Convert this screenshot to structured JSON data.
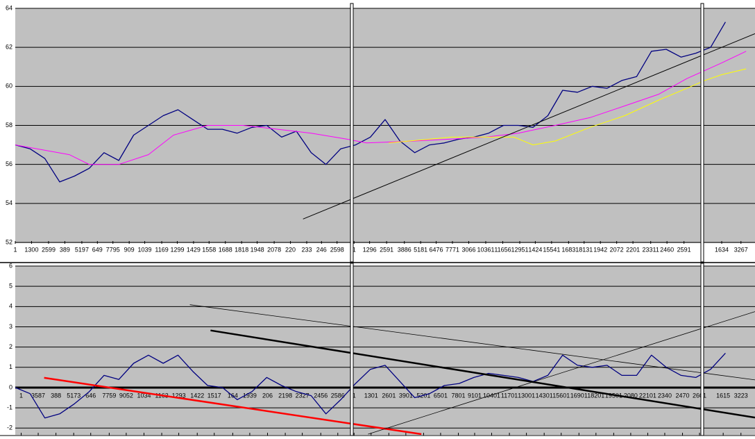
{
  "chart_data": [
    {
      "type": "line",
      "ylim": [
        52,
        64
      ],
      "yticks": [
        52,
        54,
        56,
        58,
        60,
        62,
        64
      ],
      "xlim": [
        0,
        100
      ],
      "grid": true,
      "xticks": [
        {
          "value": 0,
          "label": "1"
        },
        {
          "value": 2.2,
          "label": "1300"
        },
        {
          "value": 4.5,
          "label": "2599"
        },
        {
          "value": 6.7,
          "label": "389"
        },
        {
          "value": 9.0,
          "label": "5197"
        },
        {
          "value": 11.1,
          "label": "649"
        },
        {
          "value": 13.2,
          "label": "7795"
        },
        {
          "value": 15.4,
          "label": "909"
        },
        {
          "value": 17.5,
          "label": "1039"
        },
        {
          "value": 19.8,
          "label": "1169"
        },
        {
          "value": 21.9,
          "label": "1299"
        },
        {
          "value": 24.1,
          "label": "1429"
        },
        {
          "value": 26.2,
          "label": "1558"
        },
        {
          "value": 28.4,
          "label": "1688"
        },
        {
          "value": 30.6,
          "label": "1818"
        },
        {
          "value": 32.7,
          "label": "1948"
        },
        {
          "value": 35.0,
          "label": "2078"
        },
        {
          "value": 37.2,
          "label": "220"
        },
        {
          "value": 39.4,
          "label": "233"
        },
        {
          "value": 41.4,
          "label": "246"
        },
        {
          "value": 43.5,
          "label": "2598"
        },
        {
          "value": 45.8,
          "label": "1"
        },
        {
          "value": 47.9,
          "label": "1296"
        },
        {
          "value": 50.2,
          "label": "2591"
        },
        {
          "value": 52.6,
          "label": "3886"
        },
        {
          "value": 54.8,
          "label": "5181"
        },
        {
          "value": 56.9,
          "label": "6476"
        },
        {
          "value": 59.1,
          "label": "7771"
        },
        {
          "value": 61.3,
          "label": "3066"
        },
        {
          "value": 63.6,
          "label": "10361"
        },
        {
          "value": 65.9,
          "label": "11656"
        },
        {
          "value": 68.2,
          "label": "12951"
        },
        {
          "value": 70.3,
          "label": "1424"
        },
        {
          "value": 72.5,
          "label": "15541"
        },
        {
          "value": 74.8,
          "label": "1683"
        },
        {
          "value": 76.9,
          "label": "18131"
        },
        {
          "value": 79.1,
          "label": "1942"
        },
        {
          "value": 81.3,
          "label": "2072"
        },
        {
          "value": 83.5,
          "label": "2201"
        },
        {
          "value": 85.9,
          "label": "23311"
        },
        {
          "value": 88.1,
          "label": "2460"
        },
        {
          "value": 90.4,
          "label": "2591"
        },
        {
          "value": 95.5,
          "label": "1634"
        },
        {
          "value": 98.1,
          "label": "3267"
        }
      ],
      "series": [
        {
          "color": "#000080",
          "line_width": 1.3,
          "x": [
            0,
            2,
            4,
            6,
            8,
            10,
            12,
            14,
            16,
            18,
            20,
            22,
            24,
            26,
            28,
            30,
            32,
            34,
            36,
            38,
            40,
            42,
            44,
            46,
            48,
            50,
            52,
            54,
            56,
            58,
            60,
            62,
            64,
            66,
            68,
            70,
            72,
            74,
            76,
            78,
            80,
            82,
            84,
            86,
            88,
            90,
            92,
            94,
            96
          ],
          "values": [
            57.0,
            56.8,
            56.3,
            55.1,
            55.4,
            55.8,
            56.6,
            56.2,
            57.5,
            58.0,
            58.5,
            58.8,
            58.3,
            57.8,
            57.8,
            57.6,
            57.9,
            58.0,
            57.4,
            57.7,
            56.6,
            56.0,
            56.8,
            57.0,
            57.4,
            58.3,
            57.2,
            56.6,
            57.0,
            57.1,
            57.3,
            57.4,
            57.6,
            58.0,
            58.0,
            57.9,
            58.5,
            59.8,
            59.7,
            60.0,
            59.9,
            60.3,
            60.5,
            61.8,
            61.9,
            61.5,
            61.7,
            62.0,
            63.3
          ]
        },
        {
          "color": "#ff00ff",
          "line_width": 1,
          "x": [
            0,
            7.3,
            10,
            14,
            18,
            21.4,
            26,
            30.8,
            35.5,
            40,
            44.8,
            47.5,
            54,
            58.9,
            63.6,
            68,
            73,
            77.7,
            82.4,
            87,
            90.8,
            95.5,
            98.8
          ],
          "values": [
            57.0,
            56.5,
            56.0,
            56.0,
            56.5,
            57.5,
            58.0,
            58.0,
            57.8,
            57.6,
            57.3,
            57.1,
            57.2,
            57.3,
            57.4,
            57.6,
            58.0,
            58.4,
            59.0,
            59.6,
            60.4,
            61.2,
            61.8
          ]
        },
        {
          "color": "#ffff00",
          "line_width": 1,
          "x": [
            50.5,
            59,
            67.4,
            70,
            73,
            77.7,
            82.4,
            87,
            90.8,
            93.2,
            95.5,
            98.8
          ],
          "values": [
            57.1,
            57.4,
            57.4,
            57.0,
            57.2,
            57.9,
            58.5,
            59.3,
            59.9,
            60.3,
            60.6,
            60.9
          ]
        },
        {
          "color": "#000000",
          "line_width": 1,
          "x": [
            38.9,
            100
          ],
          "values": [
            53.2,
            62.7
          ]
        }
      ]
    },
    {
      "type": "line",
      "ylim": [
        -2.3,
        6
      ],
      "yticks": [
        -2,
        -1,
        0,
        1,
        2,
        3,
        4,
        5,
        6
      ],
      "xlim": [
        0,
        100
      ],
      "grid": true,
      "xticks": [
        {
          "value": 0.8,
          "label": "1"
        },
        {
          "value": 3.1,
          "label": "3587"
        },
        {
          "value": 5.5,
          "label": "388"
        },
        {
          "value": 7.9,
          "label": "5173"
        },
        {
          "value": 10.2,
          "label": "646"
        },
        {
          "value": 12.7,
          "label": "7759"
        },
        {
          "value": 15.0,
          "label": "9052"
        },
        {
          "value": 17.4,
          "label": "1034"
        },
        {
          "value": 19.8,
          "label": "1163"
        },
        {
          "value": 22.1,
          "label": "1293"
        },
        {
          "value": 24.6,
          "label": "1422"
        },
        {
          "value": 26.9,
          "label": "1517"
        },
        {
          "value": 29.4,
          "label": "164"
        },
        {
          "value": 31.7,
          "label": "1939"
        },
        {
          "value": 34.1,
          "label": "206"
        },
        {
          "value": 36.5,
          "label": "2198"
        },
        {
          "value": 38.8,
          "label": "2327"
        },
        {
          "value": 41.3,
          "label": "2456"
        },
        {
          "value": 43.6,
          "label": "2586"
        },
        {
          "value": 45.8,
          "label": "1"
        },
        {
          "value": 48.1,
          "label": "1301"
        },
        {
          "value": 50.5,
          "label": "2601"
        },
        {
          "value": 52.8,
          "label": "3901"
        },
        {
          "value": 55.2,
          "label": "5201"
        },
        {
          "value": 57.5,
          "label": "6501"
        },
        {
          "value": 59.9,
          "label": "7801"
        },
        {
          "value": 62.1,
          "label": "9101"
        },
        {
          "value": 64.4,
          "label": "10401"
        },
        {
          "value": 66.8,
          "label": "11701"
        },
        {
          "value": 69.1,
          "label": "13001"
        },
        {
          "value": 71.5,
          "label": "14301"
        },
        {
          "value": 73.8,
          "label": "15601"
        },
        {
          "value": 76.2,
          "label": "16901"
        },
        {
          "value": 78.5,
          "label": "18201"
        },
        {
          "value": 80.9,
          "label": "19501"
        },
        {
          "value": 83.2,
          "label": "2080"
        },
        {
          "value": 85.5,
          "label": "22101"
        },
        {
          "value": 87.8,
          "label": "2340"
        },
        {
          "value": 90.2,
          "label": "2470"
        },
        {
          "value": 92.5,
          "label": "2601"
        },
        {
          "value": 95.7,
          "label": "1615"
        },
        {
          "value": 98.1,
          "label": "3223"
        }
      ],
      "series": [
        {
          "color": "#000080",
          "line_width": 1.3,
          "x": [
            0,
            2,
            4,
            6,
            8,
            10,
            12,
            14,
            16,
            18,
            20,
            22,
            24,
            26,
            28,
            30,
            32,
            34,
            36,
            38,
            40,
            42,
            44,
            46,
            48,
            50,
            52,
            54,
            56,
            58,
            60,
            62,
            64,
            66,
            68,
            70,
            72,
            74,
            76,
            78,
            80,
            82,
            84,
            86,
            88,
            90,
            92,
            94,
            96
          ],
          "values": [
            0,
            -0.3,
            -1.5,
            -1.3,
            -0.8,
            -0.2,
            0.6,
            0.4,
            1.2,
            1.6,
            1.2,
            1.6,
            0.8,
            0.1,
            0,
            -0.6,
            -0.2,
            0.5,
            0.1,
            -0.2,
            -0.4,
            -1.3,
            -0.6,
            0.2,
            0.9,
            1.1,
            0.3,
            -0.5,
            -0.3,
            0.1,
            0.2,
            0.5,
            0.7,
            0.6,
            0.5,
            0.3,
            0.6,
            1.6,
            1.1,
            1.0,
            1.1,
            0.6,
            0.6,
            1.6,
            1.0,
            0.6,
            0.5,
            0.9,
            1.7
          ]
        },
        {
          "color": "#ff0000",
          "line_width": 2.5,
          "x": [
            3.9,
            54.9
          ],
          "values": [
            0.48,
            -2.3
          ]
        },
        {
          "color": "#000000",
          "line_width": 2.5,
          "x": [
            26.4,
            100
          ],
          "values": [
            2.82,
            -1.48
          ]
        },
        {
          "color": "#000000",
          "line_width": 0.8,
          "x": [
            23.6,
            100
          ],
          "values": [
            4.09,
            0.38
          ]
        },
        {
          "color": "#000000",
          "line_width": 0.8,
          "x": [
            47.7,
            100
          ],
          "values": [
            -2.3,
            3.75
          ]
        }
      ]
    }
  ]
}
